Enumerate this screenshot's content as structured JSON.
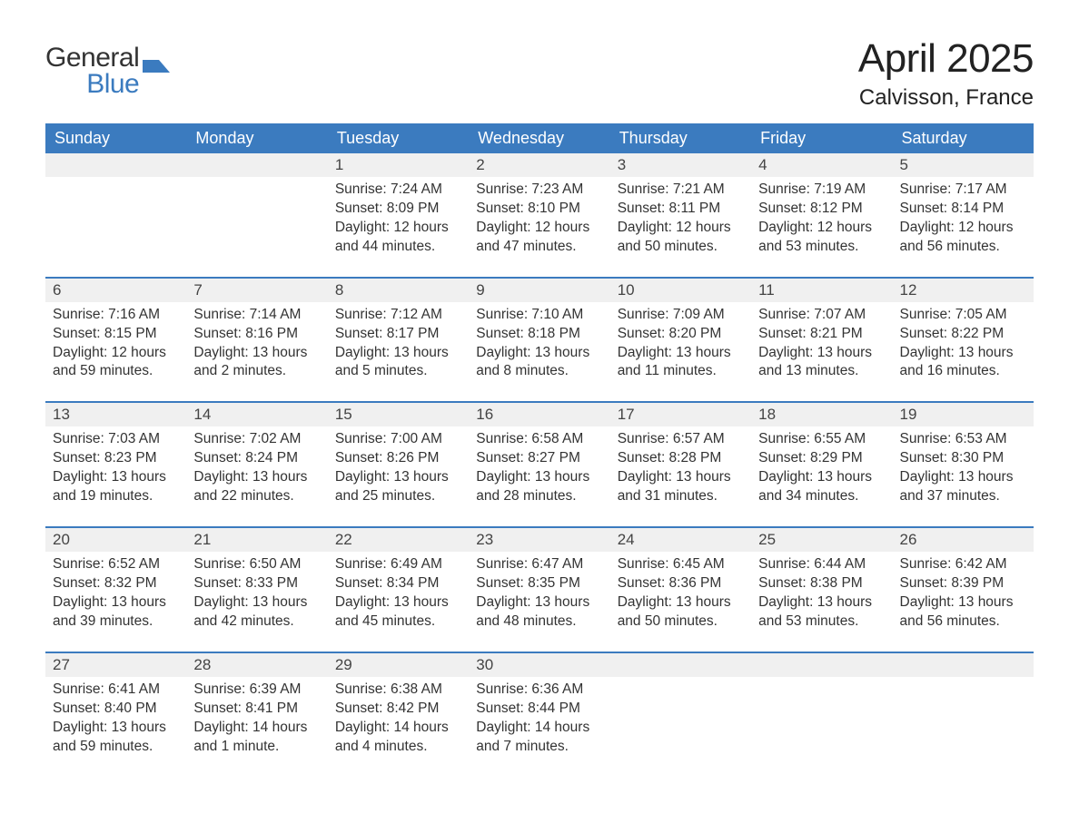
{
  "logo": {
    "word1": "General",
    "word2": "Blue",
    "icon_color": "#3b7bbf"
  },
  "title": "April 2025",
  "location": "Calvisson, France",
  "colors": {
    "header_bg": "#3b7bbf",
    "header_text": "#ffffff",
    "daynum_bg": "#f0f0f0",
    "text": "#333333",
    "rule": "#3b7bbf"
  },
  "days_of_week": [
    "Sunday",
    "Monday",
    "Tuesday",
    "Wednesday",
    "Thursday",
    "Friday",
    "Saturday"
  ],
  "weeks": [
    [
      null,
      null,
      {
        "n": "1",
        "sunrise": "Sunrise: 7:24 AM",
        "sunset": "Sunset: 8:09 PM",
        "daylight": "Daylight: 12 hours and 44 minutes."
      },
      {
        "n": "2",
        "sunrise": "Sunrise: 7:23 AM",
        "sunset": "Sunset: 8:10 PM",
        "daylight": "Daylight: 12 hours and 47 minutes."
      },
      {
        "n": "3",
        "sunrise": "Sunrise: 7:21 AM",
        "sunset": "Sunset: 8:11 PM",
        "daylight": "Daylight: 12 hours and 50 minutes."
      },
      {
        "n": "4",
        "sunrise": "Sunrise: 7:19 AM",
        "sunset": "Sunset: 8:12 PM",
        "daylight": "Daylight: 12 hours and 53 minutes."
      },
      {
        "n": "5",
        "sunrise": "Sunrise: 7:17 AM",
        "sunset": "Sunset: 8:14 PM",
        "daylight": "Daylight: 12 hours and 56 minutes."
      }
    ],
    [
      {
        "n": "6",
        "sunrise": "Sunrise: 7:16 AM",
        "sunset": "Sunset: 8:15 PM",
        "daylight": "Daylight: 12 hours and 59 minutes."
      },
      {
        "n": "7",
        "sunrise": "Sunrise: 7:14 AM",
        "sunset": "Sunset: 8:16 PM",
        "daylight": "Daylight: 13 hours and 2 minutes."
      },
      {
        "n": "8",
        "sunrise": "Sunrise: 7:12 AM",
        "sunset": "Sunset: 8:17 PM",
        "daylight": "Daylight: 13 hours and 5 minutes."
      },
      {
        "n": "9",
        "sunrise": "Sunrise: 7:10 AM",
        "sunset": "Sunset: 8:18 PM",
        "daylight": "Daylight: 13 hours and 8 minutes."
      },
      {
        "n": "10",
        "sunrise": "Sunrise: 7:09 AM",
        "sunset": "Sunset: 8:20 PM",
        "daylight": "Daylight: 13 hours and 11 minutes."
      },
      {
        "n": "11",
        "sunrise": "Sunrise: 7:07 AM",
        "sunset": "Sunset: 8:21 PM",
        "daylight": "Daylight: 13 hours and 13 minutes."
      },
      {
        "n": "12",
        "sunrise": "Sunrise: 7:05 AM",
        "sunset": "Sunset: 8:22 PM",
        "daylight": "Daylight: 13 hours and 16 minutes."
      }
    ],
    [
      {
        "n": "13",
        "sunrise": "Sunrise: 7:03 AM",
        "sunset": "Sunset: 8:23 PM",
        "daylight": "Daylight: 13 hours and 19 minutes."
      },
      {
        "n": "14",
        "sunrise": "Sunrise: 7:02 AM",
        "sunset": "Sunset: 8:24 PM",
        "daylight": "Daylight: 13 hours and 22 minutes."
      },
      {
        "n": "15",
        "sunrise": "Sunrise: 7:00 AM",
        "sunset": "Sunset: 8:26 PM",
        "daylight": "Daylight: 13 hours and 25 minutes."
      },
      {
        "n": "16",
        "sunrise": "Sunrise: 6:58 AM",
        "sunset": "Sunset: 8:27 PM",
        "daylight": "Daylight: 13 hours and 28 minutes."
      },
      {
        "n": "17",
        "sunrise": "Sunrise: 6:57 AM",
        "sunset": "Sunset: 8:28 PM",
        "daylight": "Daylight: 13 hours and 31 minutes."
      },
      {
        "n": "18",
        "sunrise": "Sunrise: 6:55 AM",
        "sunset": "Sunset: 8:29 PM",
        "daylight": "Daylight: 13 hours and 34 minutes."
      },
      {
        "n": "19",
        "sunrise": "Sunrise: 6:53 AM",
        "sunset": "Sunset: 8:30 PM",
        "daylight": "Daylight: 13 hours and 37 minutes."
      }
    ],
    [
      {
        "n": "20",
        "sunrise": "Sunrise: 6:52 AM",
        "sunset": "Sunset: 8:32 PM",
        "daylight": "Daylight: 13 hours and 39 minutes."
      },
      {
        "n": "21",
        "sunrise": "Sunrise: 6:50 AM",
        "sunset": "Sunset: 8:33 PM",
        "daylight": "Daylight: 13 hours and 42 minutes."
      },
      {
        "n": "22",
        "sunrise": "Sunrise: 6:49 AM",
        "sunset": "Sunset: 8:34 PM",
        "daylight": "Daylight: 13 hours and 45 minutes."
      },
      {
        "n": "23",
        "sunrise": "Sunrise: 6:47 AM",
        "sunset": "Sunset: 8:35 PM",
        "daylight": "Daylight: 13 hours and 48 minutes."
      },
      {
        "n": "24",
        "sunrise": "Sunrise: 6:45 AM",
        "sunset": "Sunset: 8:36 PM",
        "daylight": "Daylight: 13 hours and 50 minutes."
      },
      {
        "n": "25",
        "sunrise": "Sunrise: 6:44 AM",
        "sunset": "Sunset: 8:38 PM",
        "daylight": "Daylight: 13 hours and 53 minutes."
      },
      {
        "n": "26",
        "sunrise": "Sunrise: 6:42 AM",
        "sunset": "Sunset: 8:39 PM",
        "daylight": "Daylight: 13 hours and 56 minutes."
      }
    ],
    [
      {
        "n": "27",
        "sunrise": "Sunrise: 6:41 AM",
        "sunset": "Sunset: 8:40 PM",
        "daylight": "Daylight: 13 hours and 59 minutes."
      },
      {
        "n": "28",
        "sunrise": "Sunrise: 6:39 AM",
        "sunset": "Sunset: 8:41 PM",
        "daylight": "Daylight: 14 hours and 1 minute."
      },
      {
        "n": "29",
        "sunrise": "Sunrise: 6:38 AM",
        "sunset": "Sunset: 8:42 PM",
        "daylight": "Daylight: 14 hours and 4 minutes."
      },
      {
        "n": "30",
        "sunrise": "Sunrise: 6:36 AM",
        "sunset": "Sunset: 8:44 PM",
        "daylight": "Daylight: 14 hours and 7 minutes."
      },
      null,
      null,
      null
    ]
  ]
}
